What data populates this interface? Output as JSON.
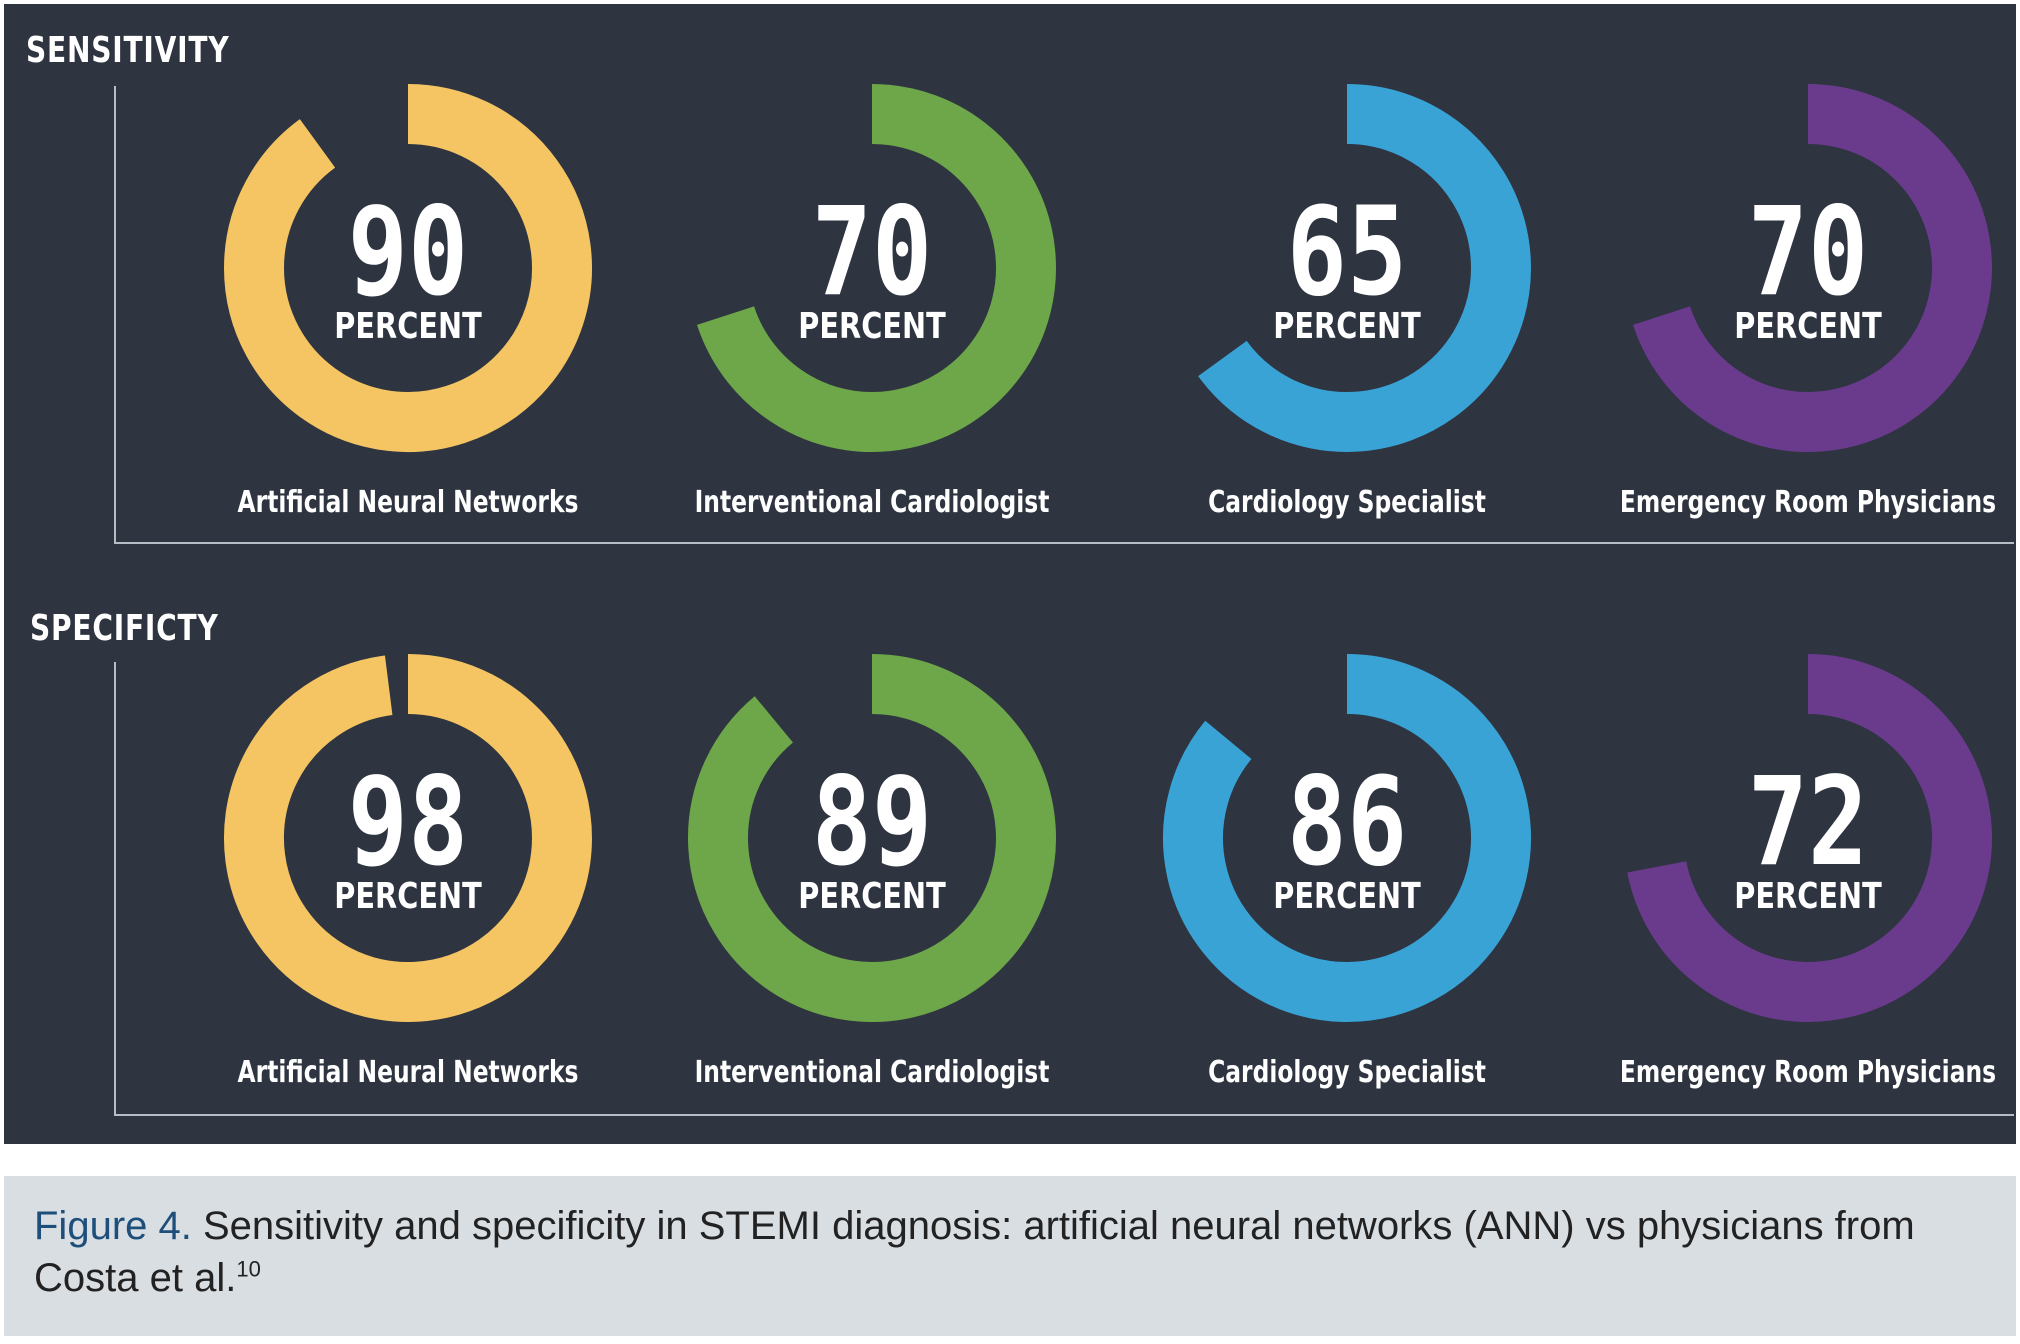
{
  "figure": {
    "background": "#2e3440",
    "sections": [
      "SENSITIVITY",
      "SPECIFICTY"
    ]
  },
  "chart_data": [
    {
      "type": "gauge",
      "title": "SENSITIVITY",
      "unit_label": "PERCENT",
      "categories": [
        "Artificial Neural Networks",
        "Interventional  Cardiologist",
        "Cardiology Specialist",
        "Emergency Room Physicians"
      ],
      "values": [
        90,
        70,
        65,
        70
      ],
      "colors": [
        "#f5c563",
        "#6ea64a",
        "#3aa3d6",
        "#6a3b8c"
      ],
      "ylim": [
        0,
        100
      ]
    },
    {
      "type": "gauge",
      "title": "SPECIFICTY",
      "unit_label": "PERCENT",
      "categories": [
        "Artificial Neural Networks",
        "Interventional  Cardiologist",
        "Cardiology Specialist",
        "Emergency Room Physicians"
      ],
      "values": [
        98,
        89,
        86,
        72
      ],
      "colors": [
        "#f5c563",
        "#6ea64a",
        "#3aa3d6",
        "#6a3b8c"
      ],
      "ylim": [
        0,
        100
      ]
    }
  ],
  "caption": {
    "label": "Figure 4.",
    "text": "Sensitivity and specificity in STEMI diagnosis: artificial neural networks (ANN) vs physicians from Costa et al.",
    "reference": "10"
  }
}
